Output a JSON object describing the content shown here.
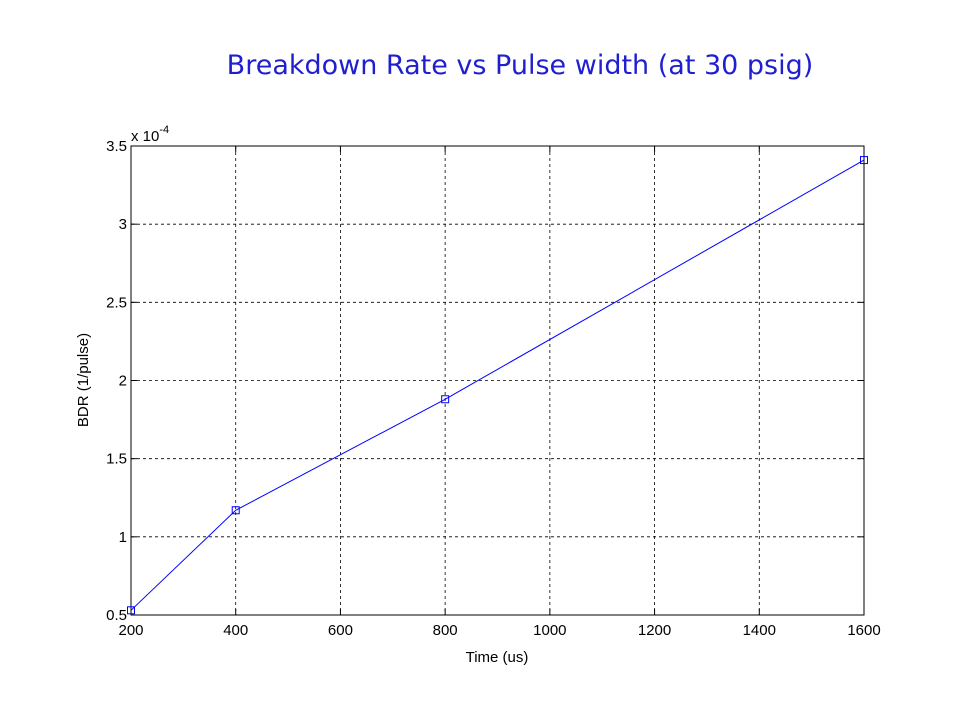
{
  "slide": {
    "title": "Breakdown Rate vs Pulse width  (at 30 psig)"
  },
  "chart_data": {
    "type": "line",
    "title": "Breakdown Rate vs Pulse width  (at 30 psig)",
    "xlabel": "Time (us)",
    "ylabel": "BDR (1/pulse)",
    "y_multiplier_label": "x 10",
    "y_multiplier_exponent": "-4",
    "xlim": [
      200,
      1600
    ],
    "ylim": [
      0.5,
      3.5
    ],
    "x_ticks": [
      200,
      400,
      600,
      800,
      1000,
      1200,
      1400,
      1600
    ],
    "y_ticks": [
      0.5,
      1,
      1.5,
      2,
      2.5,
      3,
      3.5
    ],
    "x_tick_labels": [
      "200",
      "400",
      "600",
      "800",
      "1000",
      "1200",
      "1400",
      "1600"
    ],
    "y_tick_labels": [
      "0.5",
      "1",
      "1.5",
      "2",
      "2.5",
      "3",
      "3.5"
    ],
    "grid": true,
    "marker": "square",
    "series": [
      {
        "x": [
          200,
          400,
          800,
          1600
        ],
        "y": [
          0.53,
          1.17,
          1.88,
          3.41
        ],
        "color": "#0000ff"
      }
    ]
  }
}
